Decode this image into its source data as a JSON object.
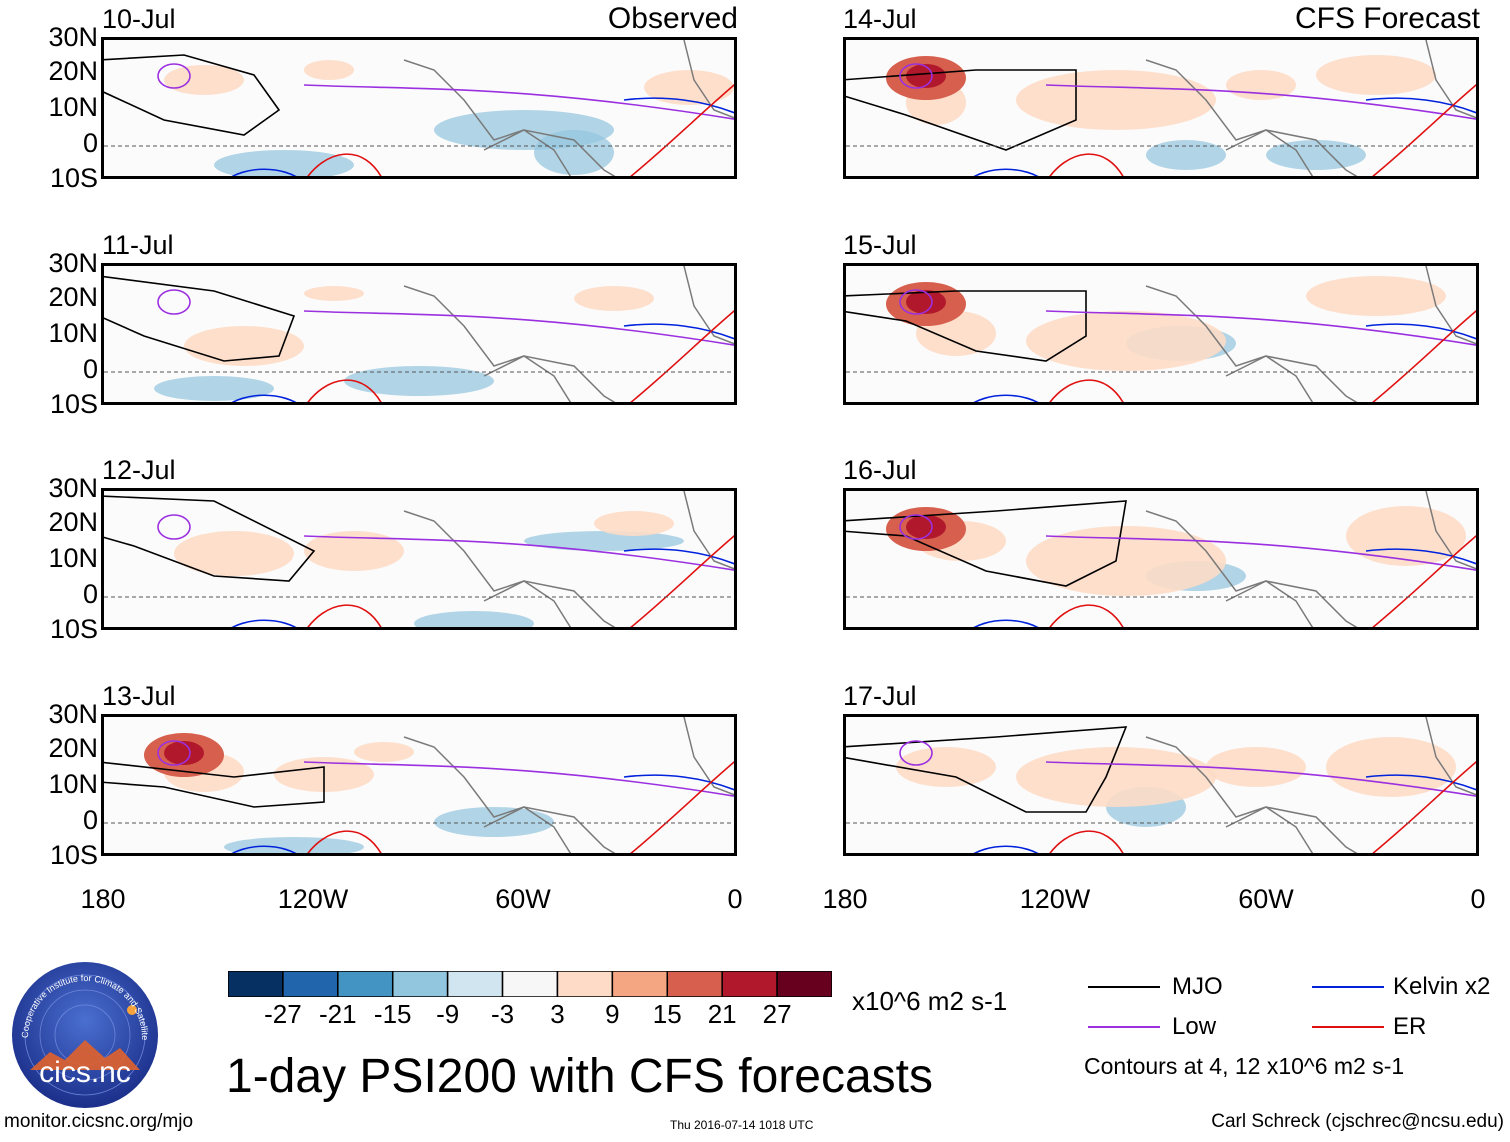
{
  "header": {
    "observed_label": "Observed",
    "forecast_label": "CFS Forecast"
  },
  "panels": {
    "observed": [
      "10-Jul",
      "11-Jul",
      "12-Jul",
      "13-Jul"
    ],
    "forecast": [
      "14-Jul",
      "15-Jul",
      "16-Jul",
      "17-Jul"
    ]
  },
  "axes": {
    "lat_labels": [
      "30N",
      "20N",
      "10N",
      "0",
      "10S"
    ],
    "lon_labels": [
      "180",
      "120W",
      "60W",
      "0"
    ]
  },
  "colorbar": {
    "values": [
      "-27",
      "-21",
      "-15",
      "-9",
      "-3",
      "3",
      "9",
      "15",
      "21",
      "27"
    ],
    "colors": [
      "#053061",
      "#2166ac",
      "#4393c3",
      "#92c5de",
      "#d1e5f0",
      "#f7f7f7",
      "#fddbc7",
      "#f4a582",
      "#d6604d",
      "#b2182b",
      "#67001f"
    ],
    "units": "x10^6 m2 s-1"
  },
  "legend": {
    "mjo": "MJO",
    "low": "Low",
    "kelvin": "Kelvin x2",
    "er": "ER",
    "contours_note": "Contours at 4, 12 x10^6 m2 s-1",
    "colors": {
      "mjo": "#000000",
      "low": "#9b30e0",
      "kelvin": "#0022dd",
      "er": "#e01010"
    }
  },
  "logo": {
    "text": "cics.nc",
    "ring_text": "Cooperative Institute for Climate and Satellites"
  },
  "footer": {
    "title": "1-day PSI200 with CFS forecasts",
    "url": "monitor.cicsnc.org/mjo",
    "timestamp": "Thu 2016-07-14 1018 UTC",
    "author": "Carl Schreck (cjschrec@ncsu.edu)"
  }
}
